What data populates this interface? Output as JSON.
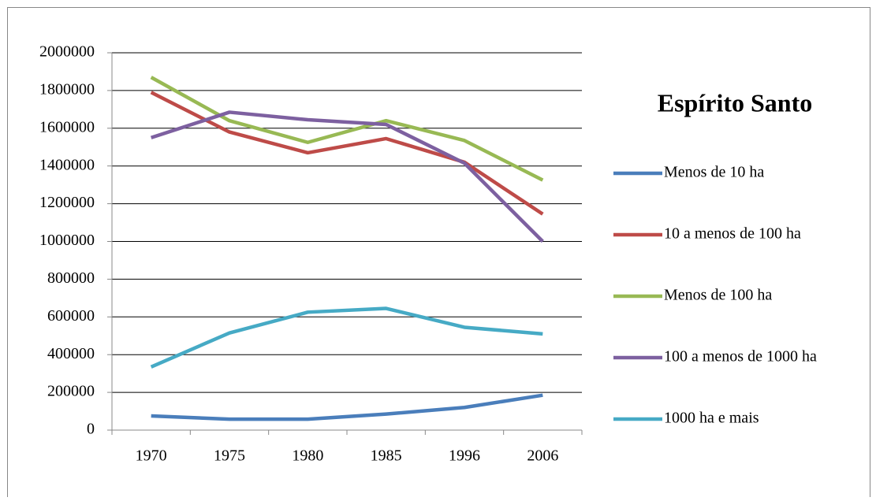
{
  "chart_data": {
    "type": "line",
    "title": "Espírito Santo",
    "categories": [
      "1970",
      "1975",
      "1980",
      "1985",
      "1996",
      "2006"
    ],
    "series": [
      {
        "name": "Menos de 10 ha",
        "color": "#4a7ebb",
        "values": [
          75000,
          58000,
          58000,
          85000,
          120000,
          185000
        ]
      },
      {
        "name": "10 a menos de 100 ha",
        "color": "#be4b48",
        "values": [
          1790000,
          1580000,
          1470000,
          1545000,
          1420000,
          1145000
        ]
      },
      {
        "name": "Menos de 100 ha",
        "color": "#98b954",
        "values": [
          1870000,
          1640000,
          1525000,
          1640000,
          1535000,
          1325000
        ]
      },
      {
        "name": "100 a menos de 1000 ha",
        "color": "#7d60a0",
        "values": [
          1550000,
          1685000,
          1645000,
          1620000,
          1415000,
          1000000
        ]
      },
      {
        "name": "1000 ha e mais",
        "color": "#46aac5",
        "values": [
          335000,
          515000,
          625000,
          645000,
          545000,
          510000
        ]
      }
    ],
    "ylim": [
      0,
      2000000
    ],
    "yticks": [
      0,
      200000,
      400000,
      600000,
      800000,
      1000000,
      1200000,
      1400000,
      1600000,
      1800000,
      2000000
    ],
    "grid": true,
    "legend": "right"
  }
}
